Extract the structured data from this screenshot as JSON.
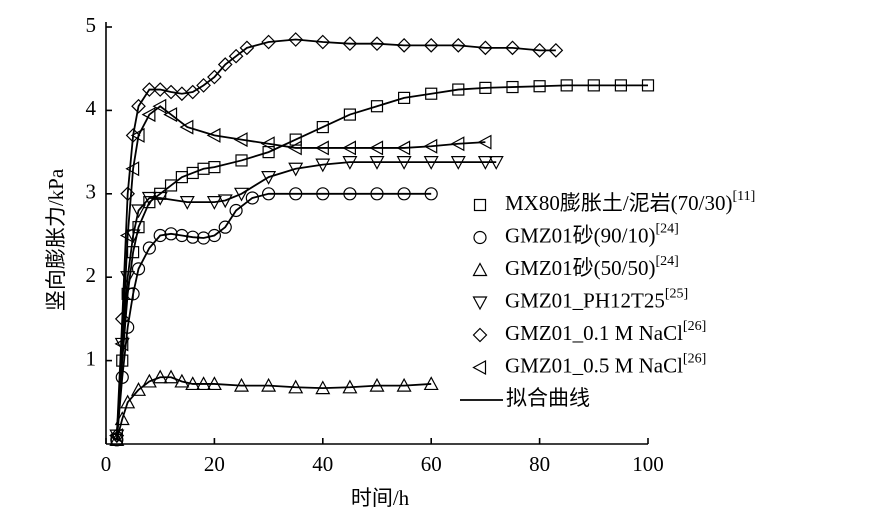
{
  "chart_data": {
    "type": "scatter",
    "x_label": "时间/h",
    "y_label": "竖向膨胀力/kPa",
    "xlim": [
      0,
      100
    ],
    "ylim": [
      0,
      5
    ],
    "xticks": [
      0,
      20,
      40,
      60,
      80,
      100
    ],
    "yticks": [
      1,
      2,
      3,
      4,
      5
    ],
    "fit_label": "拟合曲线",
    "legend": "right",
    "series": [
      {
        "name": "MX80膨胀土/泥岩(70/30)",
        "ref": "[11]",
        "marker": "square",
        "color": "#000000",
        "x": [
          2,
          3,
          4,
          5,
          6,
          8,
          10,
          12,
          14,
          16,
          18,
          20,
          25,
          30,
          35,
          40,
          45,
          50,
          55,
          60,
          65,
          70,
          75,
          80,
          85,
          90,
          95,
          100
        ],
        "values": [
          0.05,
          1,
          1.8,
          2.3,
          2.6,
          2.9,
          3.0,
          3.1,
          3.2,
          3.25,
          3.3,
          3.32,
          3.4,
          3.5,
          3.65,
          3.8,
          3.95,
          4.05,
          4.15,
          4.2,
          4.25,
          4.27,
          4.28,
          4.29,
          4.3,
          4.3,
          4.3,
          4.3
        ]
      },
      {
        "name": "GMZ01砂(90/10)",
        "ref": "[24]",
        "marker": "circle",
        "color": "#000000",
        "x": [
          2,
          3,
          4,
          5,
          6,
          8,
          10,
          12,
          14,
          16,
          18,
          20,
          22,
          24,
          27,
          30,
          35,
          40,
          45,
          50,
          55,
          60
        ],
        "values": [
          0.05,
          0.8,
          1.4,
          1.8,
          2.1,
          2.35,
          2.5,
          2.52,
          2.5,
          2.48,
          2.47,
          2.5,
          2.6,
          2.8,
          2.95,
          3.0,
          3.0,
          3.0,
          3.0,
          3.0,
          3.0,
          3.0
        ]
      },
      {
        "name": "GMZ01砂(50/50)",
        "ref": "[24]",
        "marker": "triangle-up",
        "color": "#000000",
        "x": [
          2,
          3,
          4,
          6,
          8,
          10,
          12,
          14,
          16,
          18,
          20,
          25,
          30,
          35,
          40,
          45,
          50,
          55,
          60
        ],
        "values": [
          0.05,
          0.3,
          0.5,
          0.65,
          0.75,
          0.8,
          0.8,
          0.75,
          0.72,
          0.72,
          0.72,
          0.7,
          0.7,
          0.68,
          0.67,
          0.68,
          0.7,
          0.7,
          0.72
        ]
      },
      {
        "name": "GMZ01_PH12T25",
        "ref": "[25]",
        "marker": "triangle-down",
        "color": "#000000",
        "x": [
          2,
          3,
          4,
          5,
          6,
          8,
          10,
          15,
          20,
          22,
          25,
          30,
          35,
          40,
          45,
          50,
          55,
          60,
          65,
          70,
          72
        ],
        "values": [
          0.1,
          1.2,
          2.0,
          2.5,
          2.8,
          2.95,
          2.95,
          2.9,
          2.9,
          2.92,
          3.0,
          3.2,
          3.3,
          3.35,
          3.38,
          3.38,
          3.38,
          3.38,
          3.38,
          3.38,
          3.38
        ]
      },
      {
        "name": "GMZ01_0.1 M NaCl",
        "ref": "[26]",
        "marker": "diamond",
        "color": "#000000",
        "x": [
          2,
          3,
          4,
          5,
          6,
          8,
          10,
          12,
          14,
          16,
          18,
          20,
          22,
          24,
          26,
          30,
          35,
          40,
          45,
          50,
          55,
          60,
          65,
          70,
          75,
          80,
          83
        ],
        "values": [
          0.1,
          1.5,
          3.0,
          3.7,
          4.05,
          4.25,
          4.25,
          4.22,
          4.2,
          4.22,
          4.3,
          4.4,
          4.55,
          4.65,
          4.75,
          4.82,
          4.85,
          4.82,
          4.8,
          4.8,
          4.78,
          4.78,
          4.78,
          4.75,
          4.75,
          4.72,
          4.72
        ]
      },
      {
        "name": "GMZ01_0.5 M NaCl",
        "ref": "[26]",
        "marker": "triangle-left",
        "color": "#000000",
        "x": [
          2,
          3,
          4,
          5,
          6,
          8,
          10,
          12,
          15,
          20,
          25,
          30,
          35,
          40,
          45,
          50,
          55,
          60,
          65,
          70
        ],
        "values": [
          0.1,
          1.2,
          2.5,
          3.3,
          3.7,
          3.95,
          4.05,
          3.95,
          3.8,
          3.7,
          3.65,
          3.6,
          3.55,
          3.55,
          3.55,
          3.55,
          3.55,
          3.57,
          3.6,
          3.62
        ]
      }
    ]
  }
}
